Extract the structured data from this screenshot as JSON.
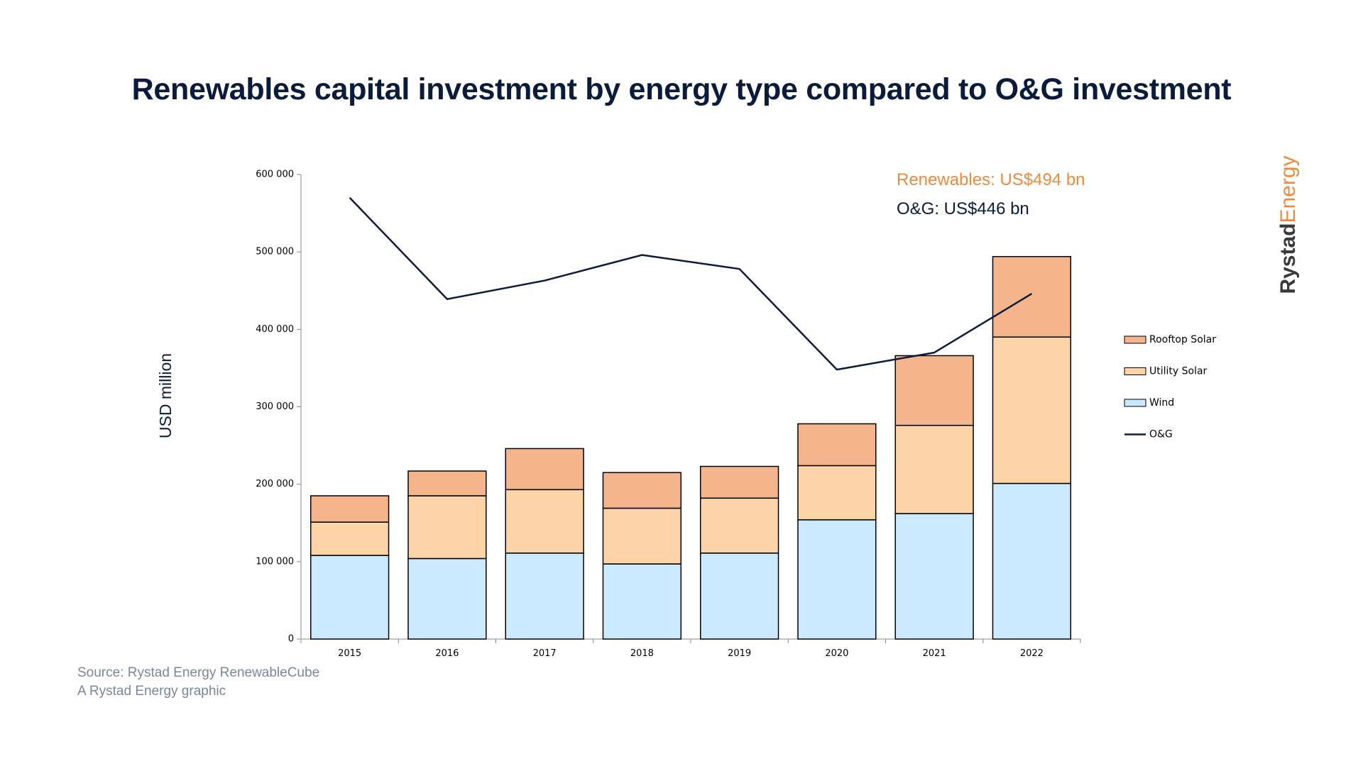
{
  "title": "Renewables capital investment by energy type compared to O&G investment",
  "chart_data": {
    "type": "bar",
    "stacked": true,
    "categories": [
      "2015",
      "2016",
      "2017",
      "2018",
      "2019",
      "2020",
      "2021",
      "2022"
    ],
    "series": [
      {
        "name": "Wind",
        "kind": "bar",
        "color": "#cceaff",
        "values": [
          108000,
          104000,
          111000,
          97000,
          111000,
          154000,
          162000,
          201000
        ]
      },
      {
        "name": "Utility Solar",
        "kind": "bar",
        "color": "#fdd4a8",
        "values": [
          43000,
          81000,
          82000,
          72000,
          71000,
          70000,
          114000,
          189000
        ]
      },
      {
        "name": "Rooftop Solar",
        "kind": "bar",
        "color": "#f4b58c",
        "values": [
          34000,
          32000,
          53000,
          46000,
          41000,
          54000,
          90000,
          104000
        ]
      },
      {
        "name": "O&G",
        "kind": "line",
        "color": "#0b1c3a",
        "values": [
          570000,
          439000,
          463000,
          496000,
          478000,
          348000,
          370000,
          446000
        ]
      }
    ],
    "legend_order": [
      "Rooftop Solar",
      "Utility Solar",
      "Wind",
      "O&G"
    ],
    "ylabel": "USD million",
    "ylim": [
      0,
      600000
    ],
    "yticks": [
      {
        "value": 0,
        "label": "0"
      },
      {
        "value": 100000,
        "label": "100 000"
      },
      {
        "value": 200000,
        "label": "200 000"
      },
      {
        "value": 300000,
        "label": "300 000"
      },
      {
        "value": 400000,
        "label": "400 000"
      },
      {
        "value": 500000,
        "label": "500 000"
      },
      {
        "value": 600000,
        "label": "600 000"
      }
    ],
    "grid": false,
    "legend_position": "right",
    "annotations": [
      {
        "text": "Renewables: US$494 bn",
        "color": "#ee8a3c"
      },
      {
        "text": "O&G: US$446 bn",
        "color": "#0b1c3a"
      }
    ]
  },
  "source_line_1": "Source: Rystad Energy RenewableCube",
  "source_line_2": "A Rystad Energy graphic",
  "logo": {
    "part1": "Rystad",
    "part2": "Energy"
  }
}
